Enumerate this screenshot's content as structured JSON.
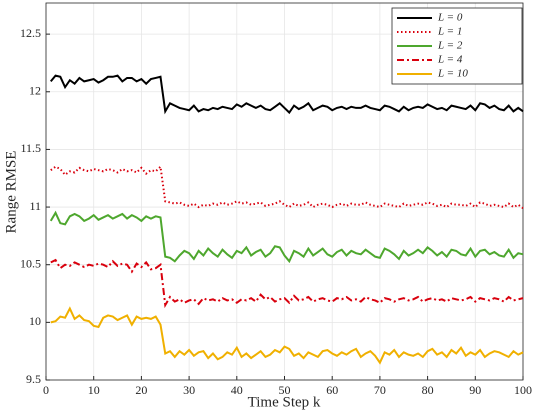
{
  "chart_data": {
    "type": "line",
    "xlabel": "Time Step k",
    "ylabel": "Range RMSE",
    "xlim": [
      0,
      100
    ],
    "ylim": [
      9.5,
      12.77
    ],
    "xticks": [
      0,
      10,
      20,
      30,
      40,
      50,
      60,
      70,
      80,
      90,
      100
    ],
    "yticks": [
      9.5,
      10,
      10.5,
      11,
      11.5,
      12,
      12.5
    ],
    "grid": true,
    "legend": "upper right",
    "x": [
      1,
      2,
      3,
      4,
      5,
      6,
      7,
      8,
      9,
      10,
      11,
      12,
      13,
      14,
      15,
      16,
      17,
      18,
      19,
      20,
      21,
      22,
      23,
      24,
      25,
      26,
      27,
      28,
      29,
      30,
      31,
      32,
      33,
      34,
      35,
      36,
      37,
      38,
      39,
      40,
      41,
      42,
      43,
      44,
      45,
      46,
      47,
      48,
      49,
      50,
      51,
      52,
      53,
      54,
      55,
      56,
      57,
      58,
      59,
      60,
      61,
      62,
      63,
      64,
      65,
      66,
      67,
      68,
      69,
      70,
      71,
      72,
      73,
      74,
      75,
      76,
      77,
      78,
      79,
      80,
      81,
      82,
      83,
      84,
      85,
      86,
      87,
      88,
      89,
      90,
      91,
      92,
      93,
      94,
      95,
      96,
      97,
      98,
      99,
      100
    ],
    "series": [
      {
        "name": "L = 0",
        "color": "#000000",
        "dash": "solid",
        "values": [
          12.09,
          12.14,
          12.13,
          12.04,
          12.1,
          12.07,
          12.12,
          12.09,
          12.1,
          12.11,
          12.08,
          12.1,
          12.13,
          12.13,
          12.14,
          12.09,
          12.12,
          12.12,
          12.09,
          12.11,
          12.07,
          12.11,
          12.12,
          12.13,
          11.83,
          11.9,
          11.88,
          11.86,
          11.85,
          11.84,
          11.88,
          11.83,
          11.85,
          11.84,
          11.86,
          11.85,
          11.87,
          11.86,
          11.85,
          11.89,
          11.87,
          11.9,
          11.88,
          11.86,
          11.88,
          11.85,
          11.84,
          11.87,
          11.9,
          11.86,
          11.82,
          11.88,
          11.85,
          11.87,
          11.9,
          11.84,
          11.86,
          11.88,
          11.87,
          11.84,
          11.86,
          11.87,
          11.85,
          11.87,
          11.86,
          11.86,
          11.88,
          11.86,
          11.85,
          11.84,
          11.88,
          11.87,
          11.85,
          11.83,
          11.87,
          11.84,
          11.86,
          11.87,
          11.86,
          11.89,
          11.87,
          11.85,
          11.86,
          11.84,
          11.88,
          11.87,
          11.86,
          11.85,
          11.88,
          11.84,
          11.9,
          11.89,
          11.86,
          11.88,
          11.85,
          11.84,
          11.88,
          11.83,
          11.86,
          11.83
        ]
      },
      {
        "name": "L = 1",
        "color": "#d9000d",
        "dash": "dotted",
        "values": [
          11.32,
          11.35,
          11.33,
          11.28,
          11.31,
          11.3,
          11.34,
          11.32,
          11.31,
          11.33,
          11.32,
          11.31,
          11.33,
          11.32,
          11.3,
          11.33,
          11.31,
          11.32,
          11.3,
          11.34,
          11.29,
          11.32,
          11.31,
          11.35,
          11.05,
          11.04,
          11.03,
          11.04,
          11.02,
          11.01,
          11.03,
          11.0,
          11.02,
          11.01,
          11.03,
          11.02,
          11.04,
          11.02,
          11.03,
          11.05,
          11.03,
          11.04,
          11.02,
          11.03,
          11.04,
          11.01,
          11.02,
          11.03,
          11.05,
          11.02,
          11.0,
          11.03,
          11.01,
          11.02,
          11.04,
          11.0,
          11.02,
          11.03,
          11.02,
          11.0,
          11.02,
          11.03,
          11.01,
          11.03,
          11.02,
          11.02,
          11.04,
          11.02,
          11.01,
          11.0,
          11.03,
          11.02,
          11.01,
          11.0,
          11.03,
          11.01,
          11.02,
          11.03,
          11.02,
          11.04,
          11.03,
          11.01,
          11.02,
          11.0,
          11.03,
          11.02,
          11.02,
          11.01,
          11.03,
          11.0,
          11.04,
          11.03,
          11.01,
          11.02,
          11.01,
          11.0,
          11.03,
          11.0,
          11.02,
          10.99
        ]
      },
      {
        "name": "L = 2",
        "color": "#4ea72e",
        "dash": "solid",
        "values": [
          10.88,
          10.95,
          10.86,
          10.85,
          10.92,
          10.94,
          10.92,
          10.88,
          10.9,
          10.93,
          10.89,
          10.91,
          10.93,
          10.9,
          10.92,
          10.94,
          10.9,
          10.93,
          10.91,
          10.88,
          10.92,
          10.9,
          10.92,
          10.91,
          10.57,
          10.56,
          10.53,
          10.58,
          10.62,
          10.6,
          10.55,
          10.62,
          10.58,
          10.64,
          10.6,
          10.57,
          10.63,
          10.59,
          10.56,
          10.62,
          10.6,
          10.65,
          10.58,
          10.61,
          10.63,
          10.57,
          10.6,
          10.66,
          10.65,
          10.58,
          10.53,
          10.62,
          10.6,
          10.57,
          10.64,
          10.58,
          10.61,
          10.64,
          10.59,
          10.57,
          10.61,
          10.63,
          10.58,
          10.62,
          10.6,
          10.59,
          10.63,
          10.6,
          10.57,
          10.56,
          10.64,
          10.62,
          10.59,
          10.55,
          10.62,
          10.58,
          10.6,
          10.63,
          10.6,
          10.65,
          10.62,
          10.58,
          10.61,
          10.57,
          10.63,
          10.62,
          10.59,
          10.58,
          10.64,
          10.57,
          10.62,
          10.63,
          10.59,
          10.61,
          10.58,
          10.57,
          10.63,
          10.56,
          10.6,
          10.59
        ]
      },
      {
        "name": "L = 4",
        "color": "#d9000d",
        "dash": "dashdot",
        "values": [
          10.52,
          10.54,
          10.47,
          10.5,
          10.49,
          10.52,
          10.5,
          10.48,
          10.5,
          10.49,
          10.51,
          10.5,
          10.48,
          10.53,
          10.49,
          10.51,
          10.5,
          10.44,
          10.51,
          10.48,
          10.52,
          10.46,
          10.47,
          10.5,
          10.15,
          10.22,
          10.18,
          10.2,
          10.17,
          10.19,
          10.2,
          10.16,
          10.21,
          10.19,
          10.2,
          10.18,
          10.21,
          10.19,
          10.2,
          10.17,
          10.2,
          10.19,
          10.21,
          10.18,
          10.24,
          10.2,
          10.22,
          10.18,
          10.2,
          10.21,
          10.17,
          10.23,
          10.19,
          10.2,
          10.22,
          10.18,
          10.2,
          10.21,
          10.19,
          10.18,
          10.21,
          10.2,
          10.22,
          10.19,
          10.2,
          10.18,
          10.22,
          10.2,
          10.19,
          10.17,
          10.21,
          10.2,
          10.18,
          10.2,
          10.21,
          10.19,
          10.2,
          10.22,
          10.18,
          10.2,
          10.21,
          10.19,
          10.2,
          10.18,
          10.21,
          10.2,
          10.19,
          10.2,
          10.22,
          10.18,
          10.21,
          10.2,
          10.19,
          10.21,
          10.2,
          10.18,
          10.22,
          10.19,
          10.2,
          10.21
        ]
      },
      {
        "name": "L = 10",
        "color": "#f0b000",
        "dash": "solid",
        "values": [
          10.0,
          10.01,
          10.05,
          10.04,
          10.12,
          10.03,
          10.06,
          10.02,
          10.01,
          9.97,
          9.96,
          10.04,
          10.06,
          10.05,
          10.02,
          10.04,
          10.06,
          9.98,
          10.05,
          10.03,
          10.04,
          10.03,
          10.05,
          9.98,
          9.73,
          9.75,
          9.7,
          9.75,
          9.72,
          9.76,
          9.71,
          9.74,
          9.75,
          9.69,
          9.73,
          9.68,
          9.7,
          9.74,
          9.72,
          9.78,
          9.7,
          9.73,
          9.69,
          9.72,
          9.75,
          9.7,
          9.72,
          9.76,
          9.74,
          9.79,
          9.77,
          9.71,
          9.73,
          9.69,
          9.74,
          9.72,
          9.7,
          9.75,
          9.76,
          9.73,
          9.71,
          9.74,
          9.72,
          9.75,
          9.77,
          9.7,
          9.73,
          9.75,
          9.71,
          9.65,
          9.74,
          9.72,
          9.76,
          9.7,
          9.74,
          9.72,
          9.71,
          9.73,
          9.7,
          9.75,
          9.77,
          9.72,
          9.74,
          9.7,
          9.76,
          9.73,
          9.78,
          9.71,
          9.74,
          9.72,
          9.76,
          9.7,
          9.73,
          9.75,
          9.74,
          9.72,
          9.7,
          9.75,
          9.72,
          9.74
        ]
      }
    ]
  }
}
